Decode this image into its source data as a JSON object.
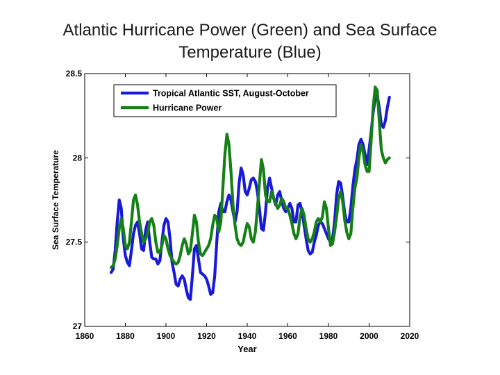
{
  "title_lines": [
    "Atlantic Hurricane Power (Green) and Sea Surface",
    "Temperature (Blue)"
  ],
  "chart_data": {
    "type": "line",
    "title": "Atlantic Hurricane Power (Green) and Sea Surface Temperature (Blue)",
    "xlabel": "Year",
    "ylabel": "Sea Surface Temperature",
    "xlim": [
      1860,
      2020
    ],
    "ylim": [
      27,
      28.5
    ],
    "xticks": [
      1860,
      1880,
      1900,
      1920,
      1940,
      1960,
      1980,
      2000,
      2020
    ],
    "yticks": [
      27,
      27.5,
      28,
      28.5
    ],
    "xtick_labels": [
      "1860",
      "1880",
      "1900",
      "1920",
      "1940",
      "1960",
      "1980",
      "2000",
      "2020"
    ],
    "ytick_labels": [
      "27",
      "27.5",
      "28",
      "28.5"
    ],
    "grid": false,
    "legend_position": "top-left",
    "series": [
      {
        "name": "Tropical Atlantic SST, August-October",
        "color": "#1919d8",
        "points": [
          [
            1873,
            27.32
          ],
          [
            1874,
            27.34
          ],
          [
            1875,
            27.45
          ],
          [
            1876,
            27.62
          ],
          [
            1877,
            27.75
          ],
          [
            1878,
            27.7
          ],
          [
            1879,
            27.52
          ],
          [
            1880,
            27.42
          ],
          [
            1881,
            27.38
          ],
          [
            1882,
            27.36
          ],
          [
            1883,
            27.45
          ],
          [
            1884,
            27.55
          ],
          [
            1885,
            27.6
          ],
          [
            1886,
            27.62
          ],
          [
            1887,
            27.55
          ],
          [
            1888,
            27.46
          ],
          [
            1889,
            27.45
          ],
          [
            1890,
            27.57
          ],
          [
            1891,
            27.62
          ],
          [
            1892,
            27.5
          ],
          [
            1893,
            27.41
          ],
          [
            1894,
            27.4
          ],
          [
            1895,
            27.4
          ],
          [
            1896,
            27.37
          ],
          [
            1897,
            27.39
          ],
          [
            1898,
            27.5
          ],
          [
            1899,
            27.6
          ],
          [
            1900,
            27.64
          ],
          [
            1901,
            27.62
          ],
          [
            1902,
            27.52
          ],
          [
            1903,
            27.38
          ],
          [
            1904,
            27.32
          ],
          [
            1905,
            27.25
          ],
          [
            1906,
            27.24
          ],
          [
            1907,
            27.28
          ],
          [
            1908,
            27.3
          ],
          [
            1909,
            27.28
          ],
          [
            1910,
            27.22
          ],
          [
            1911,
            27.17
          ],
          [
            1912,
            27.16
          ],
          [
            1913,
            27.3
          ],
          [
            1914,
            27.46
          ],
          [
            1915,
            27.48
          ],
          [
            1916,
            27.4
          ],
          [
            1917,
            27.32
          ],
          [
            1918,
            27.31
          ],
          [
            1919,
            27.3
          ],
          [
            1920,
            27.28
          ],
          [
            1921,
            27.24
          ],
          [
            1922,
            27.19
          ],
          [
            1923,
            27.2
          ],
          [
            1924,
            27.3
          ],
          [
            1925,
            27.5
          ],
          [
            1926,
            27.68
          ],
          [
            1927,
            27.73
          ],
          [
            1928,
            27.68
          ],
          [
            1929,
            27.68
          ],
          [
            1930,
            27.74
          ],
          [
            1931,
            27.78
          ],
          [
            1932,
            27.75
          ],
          [
            1933,
            27.68
          ],
          [
            1934,
            27.62
          ],
          [
            1935,
            27.68
          ],
          [
            1936,
            27.85
          ],
          [
            1937,
            27.94
          ],
          [
            1938,
            27.9
          ],
          [
            1939,
            27.8
          ],
          [
            1940,
            27.78
          ],
          [
            1941,
            27.82
          ],
          [
            1942,
            27.87
          ],
          [
            1943,
            27.88
          ],
          [
            1944,
            27.86
          ],
          [
            1945,
            27.8
          ],
          [
            1946,
            27.7
          ],
          [
            1947,
            27.58
          ],
          [
            1948,
            27.57
          ],
          [
            1949,
            27.68
          ],
          [
            1950,
            27.82
          ],
          [
            1951,
            27.88
          ],
          [
            1952,
            27.82
          ],
          [
            1953,
            27.76
          ],
          [
            1954,
            27.72
          ],
          [
            1955,
            27.78
          ],
          [
            1956,
            27.8
          ],
          [
            1957,
            27.74
          ],
          [
            1958,
            27.7
          ],
          [
            1959,
            27.68
          ],
          [
            1960,
            27.7
          ],
          [
            1961,
            27.73
          ],
          [
            1962,
            27.7
          ],
          [
            1963,
            27.62
          ],
          [
            1964,
            27.62
          ],
          [
            1965,
            27.72
          ],
          [
            1966,
            27.73
          ],
          [
            1967,
            27.68
          ],
          [
            1968,
            27.6
          ],
          [
            1969,
            27.52
          ],
          [
            1970,
            27.45
          ],
          [
            1971,
            27.43
          ],
          [
            1972,
            27.44
          ],
          [
            1973,
            27.5
          ],
          [
            1974,
            27.54
          ],
          [
            1975,
            27.6
          ],
          [
            1976,
            27.62
          ],
          [
            1977,
            27.61
          ],
          [
            1978,
            27.58
          ],
          [
            1979,
            27.55
          ],
          [
            1980,
            27.52
          ],
          [
            1981,
            27.5
          ],
          [
            1982,
            27.52
          ],
          [
            1983,
            27.62
          ],
          [
            1984,
            27.78
          ],
          [
            1985,
            27.86
          ],
          [
            1986,
            27.85
          ],
          [
            1987,
            27.77
          ],
          [
            1988,
            27.67
          ],
          [
            1989,
            27.62
          ],
          [
            1990,
            27.62
          ],
          [
            1991,
            27.7
          ],
          [
            1992,
            27.83
          ],
          [
            1993,
            27.93
          ],
          [
            1994,
            27.99
          ],
          [
            1995,
            28.08
          ],
          [
            1996,
            28.11
          ],
          [
            1997,
            28.08
          ],
          [
            1998,
            28.02
          ],
          [
            1999,
            27.96
          ],
          [
            2000,
            28.05
          ],
          [
            2001,
            28.15
          ],
          [
            2002,
            28.27
          ],
          [
            2003,
            28.35
          ],
          [
            2004,
            28.37
          ],
          [
            2005,
            28.3
          ],
          [
            2006,
            28.2
          ],
          [
            2007,
            28.18
          ],
          [
            2008,
            28.22
          ],
          [
            2009,
            28.3
          ],
          [
            2010,
            28.36
          ]
        ]
      },
      {
        "name": "Hurricane Power",
        "color": "#158015",
        "points": [
          [
            1873,
            27.35
          ],
          [
            1874,
            27.36
          ],
          [
            1875,
            27.4
          ],
          [
            1876,
            27.48
          ],
          [
            1877,
            27.58
          ],
          [
            1878,
            27.64
          ],
          [
            1879,
            27.58
          ],
          [
            1880,
            27.48
          ],
          [
            1881,
            27.46
          ],
          [
            1882,
            27.5
          ],
          [
            1883,
            27.62
          ],
          [
            1884,
            27.75
          ],
          [
            1885,
            27.78
          ],
          [
            1886,
            27.72
          ],
          [
            1887,
            27.62
          ],
          [
            1888,
            27.55
          ],
          [
            1889,
            27.5
          ],
          [
            1890,
            27.52
          ],
          [
            1891,
            27.55
          ],
          [
            1892,
            27.62
          ],
          [
            1893,
            27.64
          ],
          [
            1894,
            27.6
          ],
          [
            1895,
            27.5
          ],
          [
            1896,
            27.44
          ],
          [
            1897,
            27.44
          ],
          [
            1898,
            27.48
          ],
          [
            1899,
            27.54
          ],
          [
            1900,
            27.52
          ],
          [
            1901,
            27.46
          ],
          [
            1902,
            27.42
          ],
          [
            1903,
            27.4
          ],
          [
            1904,
            27.38
          ],
          [
            1905,
            27.37
          ],
          [
            1906,
            27.38
          ],
          [
            1907,
            27.42
          ],
          [
            1908,
            27.48
          ],
          [
            1909,
            27.52
          ],
          [
            1910,
            27.49
          ],
          [
            1911,
            27.43
          ],
          [
            1912,
            27.45
          ],
          [
            1913,
            27.55
          ],
          [
            1914,
            27.66
          ],
          [
            1915,
            27.62
          ],
          [
            1916,
            27.5
          ],
          [
            1917,
            27.43
          ],
          [
            1918,
            27.42
          ],
          [
            1919,
            27.44
          ],
          [
            1920,
            27.46
          ],
          [
            1921,
            27.48
          ],
          [
            1922,
            27.52
          ],
          [
            1923,
            27.6
          ],
          [
            1924,
            27.66
          ],
          [
            1925,
            27.64
          ],
          [
            1926,
            27.56
          ],
          [
            1927,
            27.62
          ],
          [
            1928,
            27.82
          ],
          [
            1929,
            28.02
          ],
          [
            1930,
            28.14
          ],
          [
            1931,
            28.08
          ],
          [
            1932,
            27.92
          ],
          [
            1933,
            27.72
          ],
          [
            1934,
            27.6
          ],
          [
            1935,
            27.52
          ],
          [
            1936,
            27.49
          ],
          [
            1937,
            27.48
          ],
          [
            1938,
            27.5
          ],
          [
            1939,
            27.56
          ],
          [
            1940,
            27.61
          ],
          [
            1941,
            27.59
          ],
          [
            1942,
            27.52
          ],
          [
            1943,
            27.5
          ],
          [
            1944,
            27.56
          ],
          [
            1945,
            27.7
          ],
          [
            1946,
            27.85
          ],
          [
            1947,
            27.99
          ],
          [
            1948,
            27.93
          ],
          [
            1949,
            27.78
          ],
          [
            1950,
            27.74
          ],
          [
            1951,
            27.74
          ],
          [
            1952,
            27.8
          ],
          [
            1953,
            27.76
          ],
          [
            1954,
            27.73
          ],
          [
            1955,
            27.7
          ],
          [
            1956,
            27.72
          ],
          [
            1957,
            27.76
          ],
          [
            1958,
            27.74
          ],
          [
            1959,
            27.7
          ],
          [
            1960,
            27.7
          ],
          [
            1961,
            27.66
          ],
          [
            1962,
            27.61
          ],
          [
            1963,
            27.55
          ],
          [
            1964,
            27.52
          ],
          [
            1965,
            27.55
          ],
          [
            1966,
            27.65
          ],
          [
            1967,
            27.7
          ],
          [
            1968,
            27.66
          ],
          [
            1969,
            27.58
          ],
          [
            1970,
            27.52
          ],
          [
            1971,
            27.5
          ],
          [
            1972,
            27.52
          ],
          [
            1973,
            27.56
          ],
          [
            1974,
            27.62
          ],
          [
            1975,
            27.64
          ],
          [
            1976,
            27.62
          ],
          [
            1977,
            27.65
          ],
          [
            1978,
            27.74
          ],
          [
            1979,
            27.7
          ],
          [
            1980,
            27.58
          ],
          [
            1981,
            27.48
          ],
          [
            1982,
            27.49
          ],
          [
            1983,
            27.56
          ],
          [
            1984,
            27.65
          ],
          [
            1985,
            27.76
          ],
          [
            1986,
            27.8
          ],
          [
            1987,
            27.74
          ],
          [
            1988,
            27.63
          ],
          [
            1989,
            27.56
          ],
          [
            1990,
            27.52
          ],
          [
            1991,
            27.55
          ],
          [
            1992,
            27.7
          ],
          [
            1993,
            27.82
          ],
          [
            1994,
            27.88
          ],
          [
            1995,
            28.0
          ],
          [
            1996,
            28.08
          ],
          [
            1997,
            28.04
          ],
          [
            1998,
            27.96
          ],
          [
            1999,
            27.92
          ],
          [
            2000,
            27.92
          ],
          [
            2001,
            28.1
          ],
          [
            2002,
            28.3
          ],
          [
            2003,
            28.42
          ],
          [
            2004,
            28.4
          ],
          [
            2005,
            28.22
          ],
          [
            2006,
            28.05
          ],
          [
            2007,
            28.0
          ],
          [
            2008,
            27.97
          ],
          [
            2009,
            27.99
          ],
          [
            2010,
            28.0
          ]
        ]
      }
    ]
  }
}
